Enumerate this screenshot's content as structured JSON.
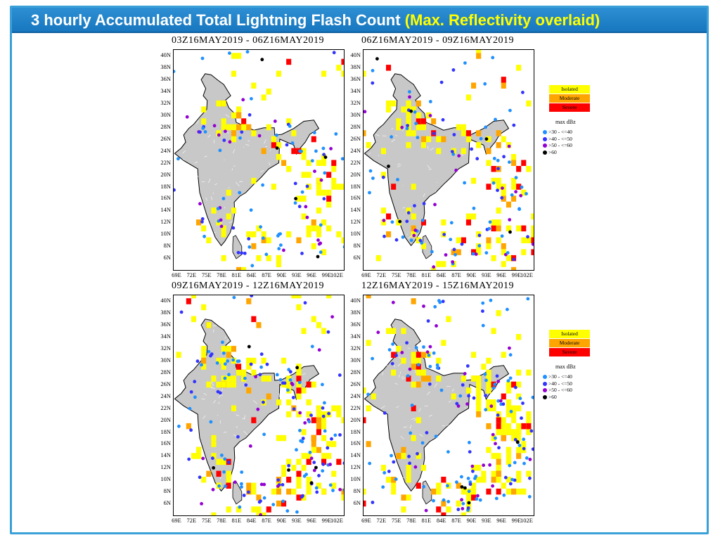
{
  "header": {
    "title_main": "3 hourly Accumulated Total Lightning Flash Count",
    "title_highlight": "(Max. Reflectivity overlaid)"
  },
  "colors": {
    "frame": "#3aa0d8",
    "title_bar": "#1f82c8",
    "highlight": "#ffff00",
    "isolated": "#ffff00",
    "moderate": "#ffa500",
    "severe": "#ff0000",
    "dbz_30_40": "#1e90ff",
    "dbz_40_50": "#3333ff",
    "dbz_50_60": "#9400d3",
    "dbz_gt60": "#000000",
    "land_fill": "#c8c8c8"
  },
  "axes": {
    "y_ticks": [
      "40N",
      "38N",
      "36N",
      "34N",
      "32N",
      "30N",
      "28N",
      "26N",
      "24N",
      "22N",
      "20N",
      "18N",
      "16N",
      "14N",
      "12N",
      "10N",
      "8N",
      "6N"
    ],
    "x_ticks": [
      "69E",
      "72E",
      "75E",
      "78E",
      "81E",
      "84E",
      "87E",
      "90E",
      "93E",
      "96E",
      "99E",
      "102E"
    ]
  },
  "legend": {
    "lightning": [
      "Isolated",
      "Moderate",
      "Severe"
    ],
    "dbz_title": "max dBz",
    "dbz": [
      ">30 - <=40",
      ">40 - <=50",
      ">50 - <=60",
      ">60"
    ]
  },
  "chart_data": [
    {
      "type": "scatter",
      "title": "03Z16MAY2019 - 06Z16MAY2019",
      "x_range": [
        68,
        102
      ],
      "y_range": [
        4,
        41
      ],
      "seed": 11,
      "lightning_cells": 120,
      "severe_fraction": 0.08,
      "reflectivity_points": 95
    },
    {
      "type": "scatter",
      "title": "06Z16MAY2019 - 09Z16MAY2019",
      "x_range": [
        68,
        102
      ],
      "y_range": [
        4,
        41
      ],
      "seed": 23,
      "lightning_cells": 150,
      "severe_fraction": 0.15,
      "reflectivity_points": 110
    },
    {
      "type": "scatter",
      "title": "09Z16MAY2019 - 12Z16MAY2019",
      "x_range": [
        68,
        102
      ],
      "y_range": [
        4,
        41
      ],
      "seed": 37,
      "lightning_cells": 190,
      "severe_fraction": 0.14,
      "reflectivity_points": 140
    },
    {
      "type": "scatter",
      "title": "12Z16MAY2019 - 15Z16MAY2019",
      "x_range": [
        68,
        102
      ],
      "y_range": [
        4,
        41
      ],
      "seed": 53,
      "lightning_cells": 210,
      "severe_fraction": 0.12,
      "reflectivity_points": 150
    }
  ]
}
